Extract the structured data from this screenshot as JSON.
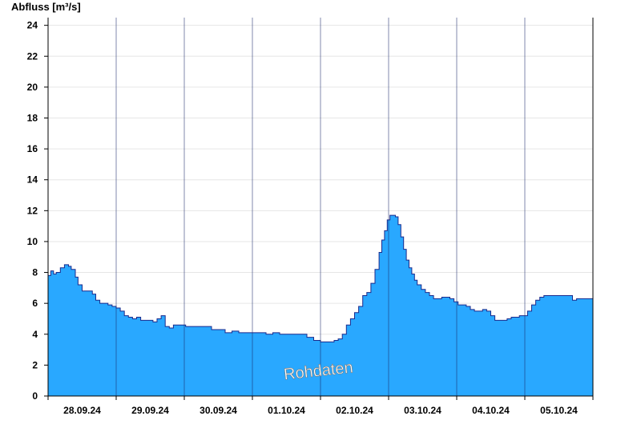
{
  "chart_data": {
    "type": "area",
    "ylabel": "Abfluss [m³/s]",
    "xlabel": "",
    "title": "",
    "watermark": "Rohdaten",
    "ylim": [
      0,
      24.5
    ],
    "yticks": [
      0,
      2,
      4,
      6,
      8,
      10,
      12,
      14,
      16,
      18,
      20,
      22,
      24
    ],
    "xlim": [
      0,
      8
    ],
    "day_labels": [
      "28.09.24",
      "29.09.24",
      "30.09.24",
      "01.10.24",
      "02.10.24",
      "03.10.24",
      "04.10.24",
      "05.10.24"
    ],
    "grid": true,
    "fill_color": "#29a8ff",
    "line_color": "#1a2a8c",
    "series": [
      {
        "x": [
          0.0,
          0.04,
          0.08,
          0.12,
          0.18,
          0.24,
          0.3,
          0.34,
          0.4,
          0.44,
          0.5,
          0.55,
          0.6,
          0.65,
          0.7,
          0.76,
          0.82,
          0.88,
          0.94,
          1.0,
          1.06,
          1.12,
          1.18,
          1.24,
          1.3,
          1.36,
          1.42,
          1.48,
          1.54,
          1.6,
          1.66,
          1.72,
          1.78,
          1.84,
          1.9,
          1.96,
          2.02,
          2.1,
          2.2,
          2.3,
          2.4,
          2.5,
          2.6,
          2.7,
          2.8,
          2.9,
          3.0,
          3.1,
          3.2,
          3.3,
          3.4,
          3.5,
          3.6,
          3.7,
          3.8,
          3.9,
          4.0,
          4.1,
          4.2,
          4.26,
          4.32,
          4.38,
          4.44,
          4.5,
          4.56,
          4.62,
          4.68,
          4.74,
          4.8,
          4.86,
          4.9,
          4.94,
          4.98,
          5.02,
          5.06,
          5.1,
          5.14,
          5.18,
          5.22,
          5.26,
          5.3,
          5.34,
          5.38,
          5.42,
          5.48,
          5.54,
          5.6,
          5.66,
          5.72,
          5.78,
          5.84,
          5.9,
          5.96,
          6.02,
          6.08,
          6.14,
          6.2,
          6.26,
          6.32,
          6.38,
          6.44,
          6.5,
          6.56,
          6.62,
          6.68,
          6.74,
          6.8,
          6.86,
          6.92,
          6.98,
          7.04,
          7.1,
          7.16,
          7.22,
          7.28,
          7.34,
          7.4,
          7.46,
          7.52,
          7.58,
          7.64,
          7.7,
          7.76,
          7.82,
          7.88,
          7.94,
          8.0
        ],
        "values": [
          7.8,
          8.1,
          7.9,
          8.0,
          8.3,
          8.5,
          8.4,
          8.2,
          7.7,
          7.2,
          6.8,
          6.8,
          6.8,
          6.6,
          6.2,
          6.0,
          6.0,
          5.9,
          5.8,
          5.7,
          5.5,
          5.2,
          5.1,
          5.0,
          5.1,
          4.9,
          4.9,
          4.9,
          4.8,
          5.0,
          5.2,
          4.5,
          4.4,
          4.6,
          4.6,
          4.6,
          4.5,
          4.5,
          4.5,
          4.5,
          4.3,
          4.3,
          4.1,
          4.2,
          4.1,
          4.1,
          4.1,
          4.1,
          4.0,
          4.1,
          4.0,
          4.0,
          4.0,
          4.0,
          3.8,
          3.6,
          3.5,
          3.5,
          3.6,
          3.7,
          4.0,
          4.6,
          5.0,
          5.4,
          5.8,
          6.5,
          6.7,
          7.3,
          8.2,
          9.3,
          10.1,
          10.7,
          11.4,
          11.7,
          11.7,
          11.6,
          11.1,
          10.3,
          9.5,
          8.8,
          8.3,
          7.9,
          7.5,
          7.2,
          6.9,
          6.7,
          6.5,
          6.3,
          6.3,
          6.4,
          6.4,
          6.3,
          6.1,
          5.9,
          5.9,
          5.8,
          5.6,
          5.5,
          5.5,
          5.6,
          5.5,
          5.2,
          4.9,
          4.9,
          4.9,
          5.0,
          5.1,
          5.1,
          5.2,
          5.2,
          5.5,
          5.9,
          6.2,
          6.4,
          6.5,
          6.5,
          6.5,
          6.5,
          6.5,
          6.5,
          6.5,
          6.2,
          6.3,
          6.3,
          6.3,
          6.3,
          6.3
        ]
      }
    ]
  }
}
